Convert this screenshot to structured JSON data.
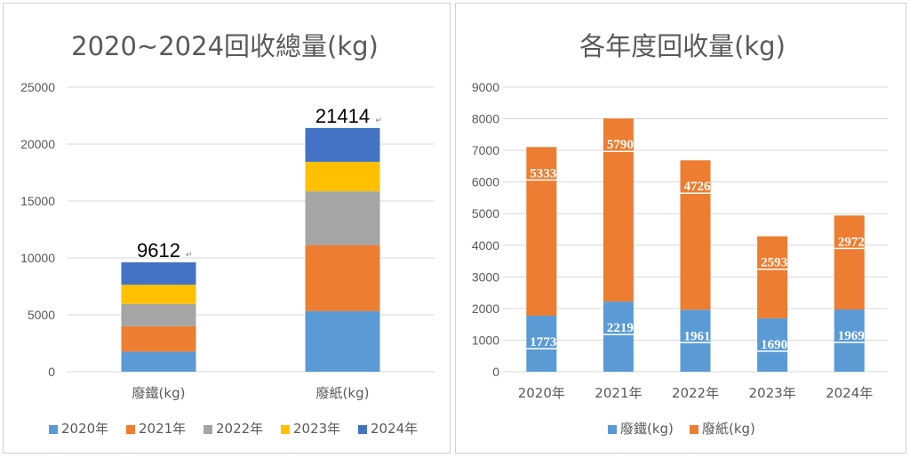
{
  "chart_data": [
    {
      "type": "bar",
      "stacked": true,
      "title": "2020~2024回收總量(kg)",
      "categories": [
        "廢鐵(kg)",
        "廢紙(kg)"
      ],
      "series": [
        {
          "name": "2020年",
          "color": "#5b9bd5",
          "values": [
            1773,
            5333
          ]
        },
        {
          "name": "2021年",
          "color": "#ed7d31",
          "values": [
            2219,
            5790
          ]
        },
        {
          "name": "2022年",
          "color": "#a5a5a5",
          "values": [
            1961,
            4726
          ]
        },
        {
          "name": "2023年",
          "color": "#ffc000",
          "values": [
            1690,
            2593
          ]
        },
        {
          "name": "2024年",
          "color": "#4472c4",
          "values": [
            1969,
            2972
          ]
        }
      ],
      "totals": [
        "9612",
        "21414"
      ],
      "ylim": [
        0,
        25000
      ],
      "yticks": [
        "0",
        "5000",
        "10000",
        "15000",
        "20000",
        "25000"
      ],
      "grid": true,
      "legend": "bottom"
    },
    {
      "type": "bar",
      "stacked": true,
      "title": "各年度回收量(kg)",
      "categories": [
        "2020年",
        "2021年",
        "2022年",
        "2023年",
        "2024年"
      ],
      "series": [
        {
          "name": "廢鐵(kg)",
          "color": "#5b9bd5",
          "values": [
            1773,
            2219,
            1961,
            1690,
            1969
          ]
        },
        {
          "name": "廢紙(kg)",
          "color": "#ed7d31",
          "values": [
            5333,
            5790,
            4726,
            2593,
            2972
          ]
        }
      ],
      "ylim": [
        0,
        9000
      ],
      "yticks": [
        "0",
        "1000",
        "2000",
        "3000",
        "4000",
        "5000",
        "6000",
        "7000",
        "8000",
        "9000"
      ],
      "grid": true,
      "legend": "bottom",
      "data_labels": true
    }
  ]
}
